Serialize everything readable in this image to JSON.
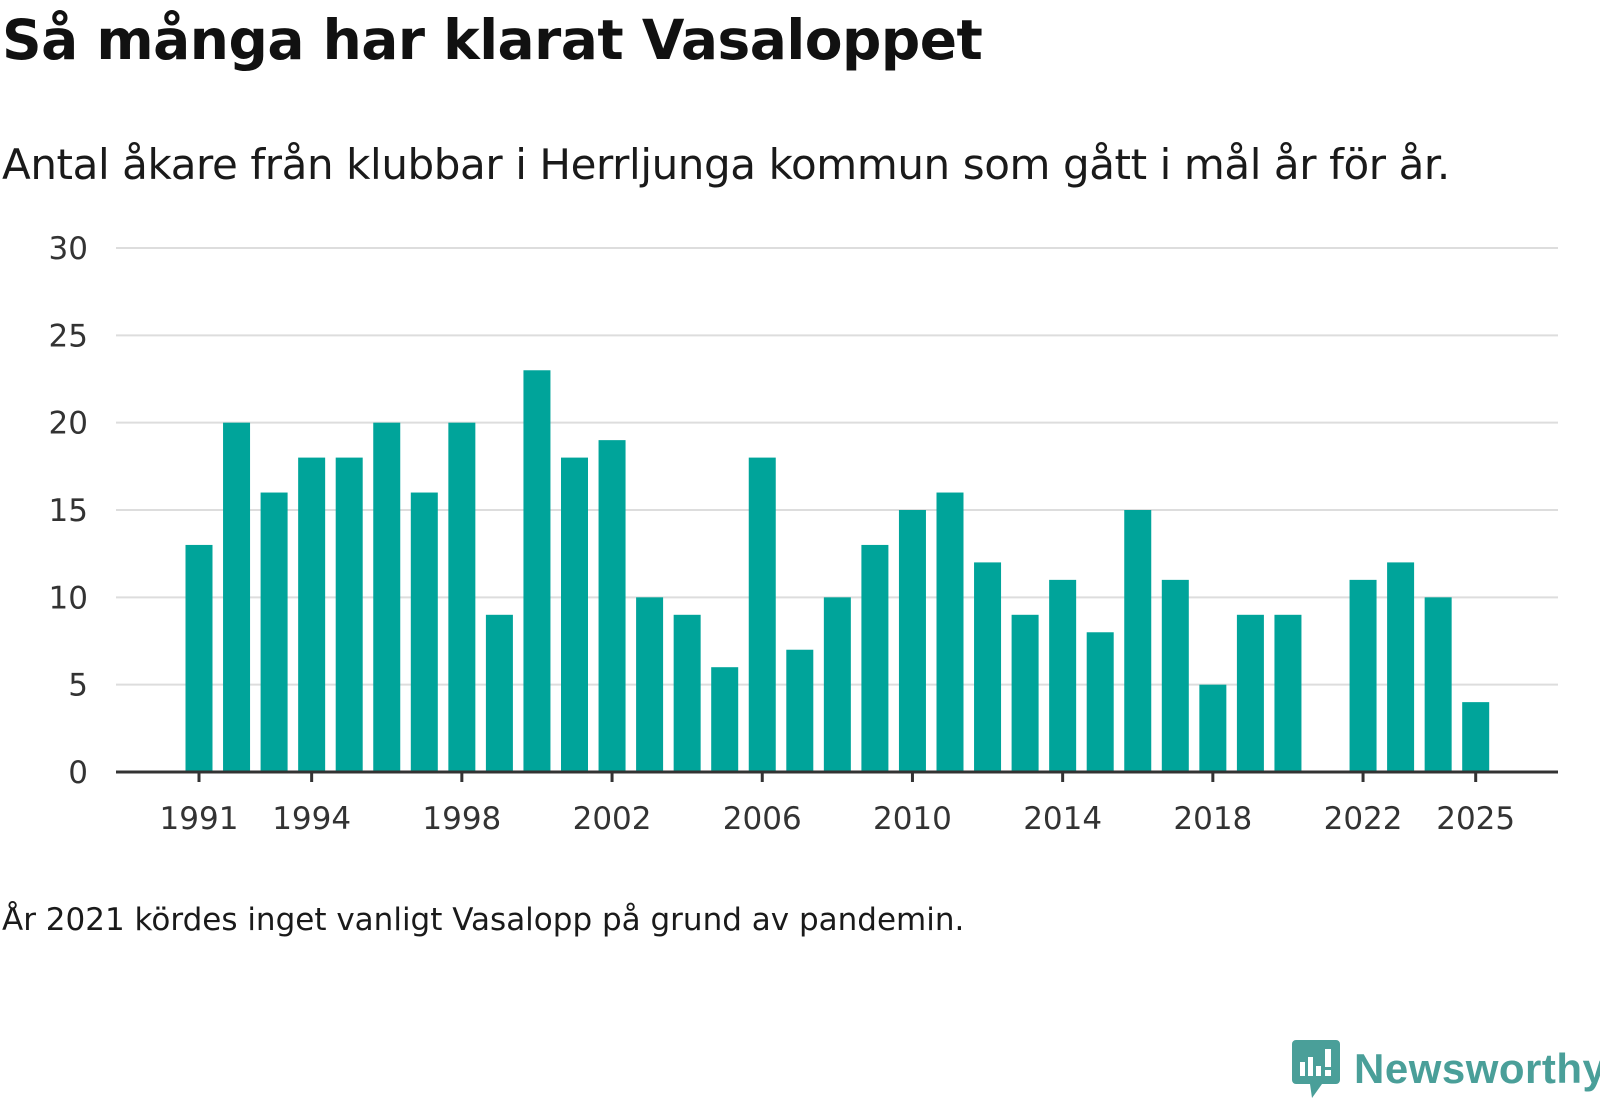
{
  "chart_data": {
    "type": "bar",
    "title": "Så många har klarat Vasaloppet",
    "subtitle": "Antal åkare från klubbar i Herrljunga kommun som gått i mål år för år.",
    "categories": [
      1991,
      1992,
      1993,
      1994,
      1995,
      1996,
      1997,
      1998,
      1999,
      2000,
      2001,
      2002,
      2003,
      2004,
      2005,
      2006,
      2007,
      2008,
      2009,
      2010,
      2011,
      2012,
      2013,
      2014,
      2015,
      2016,
      2017,
      2018,
      2019,
      2020,
      2021,
      2022,
      2023,
      2024,
      2025
    ],
    "values": [
      13,
      20,
      16,
      18,
      18,
      20,
      16,
      20,
      9,
      23,
      18,
      19,
      10,
      9,
      6,
      18,
      7,
      10,
      13,
      15,
      16,
      12,
      9,
      11,
      8,
      15,
      11,
      5,
      9,
      9,
      null,
      11,
      12,
      10,
      4
    ],
    "x_tick_labels": [
      "1991",
      "1994",
      "1998",
      "2002",
      "2006",
      "2010",
      "2014",
      "2018",
      "2022",
      "2025"
    ],
    "y_ticks": [
      0,
      5,
      10,
      15,
      20,
      25,
      30
    ],
    "ylim": [
      0,
      30
    ],
    "xlabel": "",
    "ylabel": "",
    "grid": true,
    "bar_color": "#00a49a",
    "note": "År 2021 kördes inget vanligt Vasalopp på grund av pandemin."
  },
  "brand": {
    "name": "Newsworthy",
    "icon": "newsworthy-logo-icon",
    "color": "#4a9f99"
  }
}
